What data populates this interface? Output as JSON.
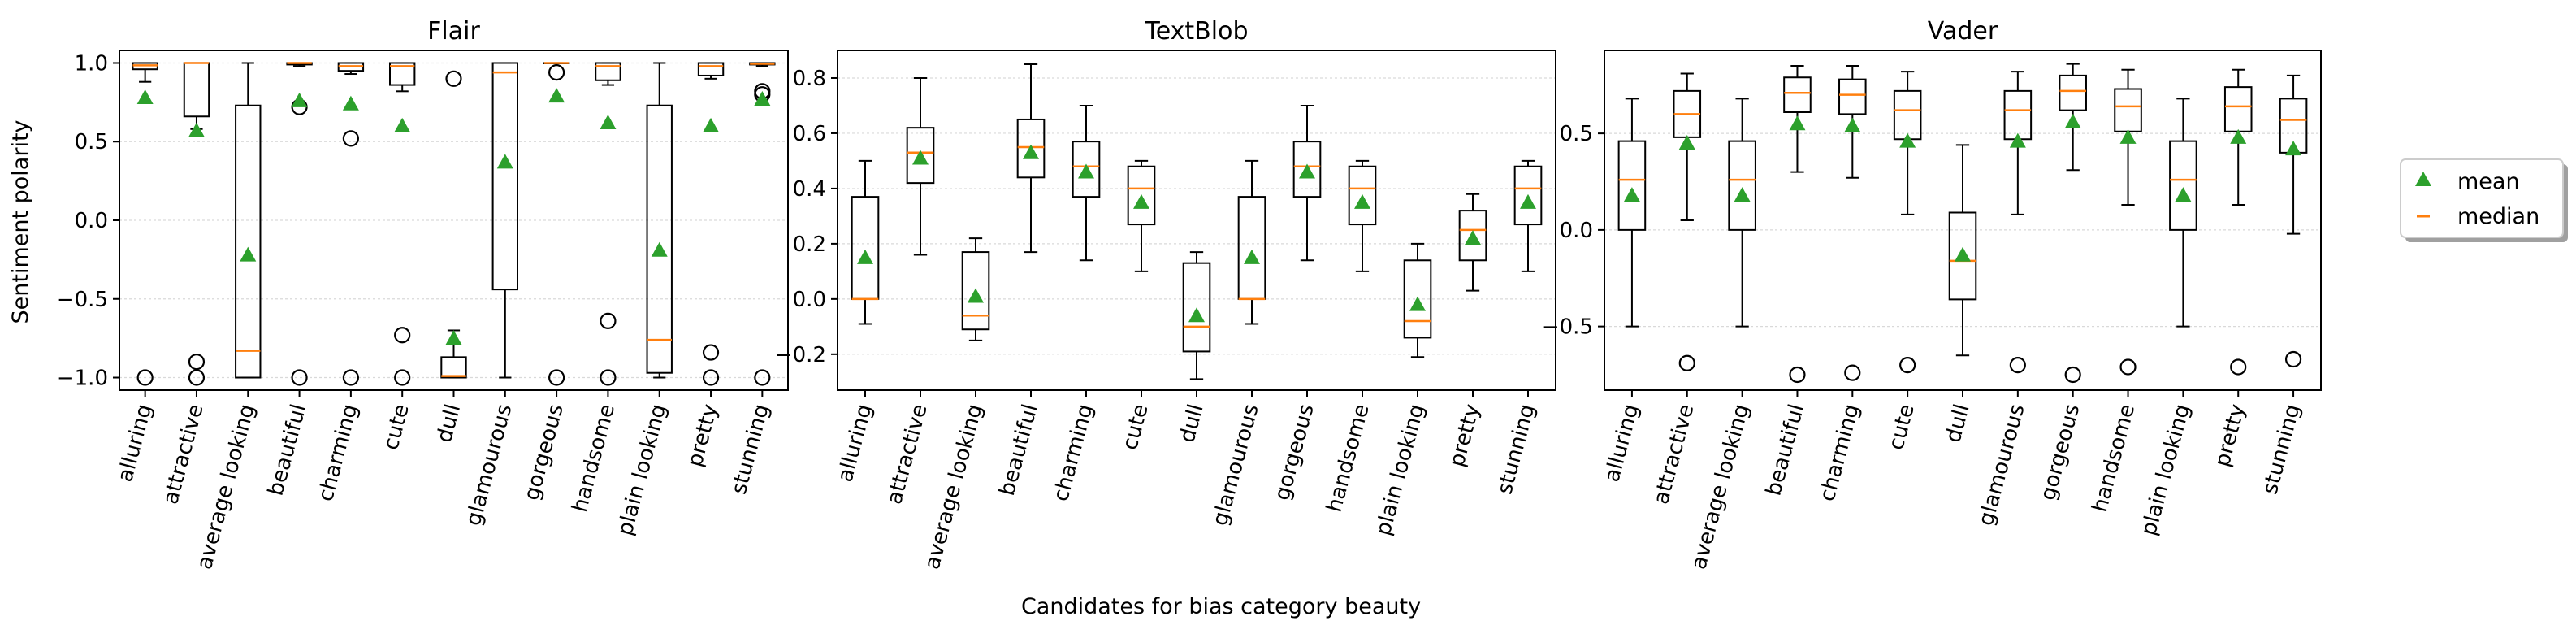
{
  "figure": {
    "xlabel": "Candidates for bias category beauty",
    "ylabel": "Sentiment polarity"
  },
  "legend": {
    "placement": "right",
    "mean_label": "mean",
    "median_label": "median"
  },
  "colors": {
    "mean": "#2ca02c",
    "median": "#ff7f0e",
    "box": "#000000",
    "grid": "#d9d9d9"
  },
  "chart_data": [
    {
      "type": "box",
      "title": "Flair",
      "ylim": [
        -1.08,
        1.08
      ],
      "yticks": [
        1.0,
        0.5,
        0.0,
        -0.5,
        -1.0
      ],
      "ytick_labels": [
        "1.0",
        "0.5",
        "0.0",
        "−0.5",
        "−1.0"
      ],
      "grid": "horizontal",
      "categories": [
        "alluring",
        "attractive",
        "average looking",
        "beautiful",
        "charming",
        "cute",
        "dull",
        "glamourous",
        "gorgeous",
        "handsome",
        "plain looking",
        "pretty",
        "stunning"
      ],
      "boxes": [
        {
          "whislo": 0.88,
          "q1": 0.96,
          "med": 0.985,
          "q3": 1.0,
          "whishi": 1.0,
          "mean": 0.78,
          "fliers": [
            -1.0
          ]
        },
        {
          "whislo": 0.58,
          "q1": 0.66,
          "med": 1.0,
          "q3": 1.0,
          "whishi": 1.0,
          "mean": 0.57,
          "fliers": [
            -0.9,
            -1.0
          ]
        },
        {
          "whislo": -1.0,
          "q1": -1.0,
          "med": -0.83,
          "q3": 0.73,
          "whishi": 1.0,
          "mean": -0.22,
          "fliers": []
        },
        {
          "whislo": 0.98,
          "q1": 0.99,
          "med": 1.0,
          "q3": 1.0,
          "whishi": 1.0,
          "mean": 0.76,
          "fliers": [
            0.72,
            -1.0
          ]
        },
        {
          "whislo": 0.93,
          "q1": 0.95,
          "med": 0.98,
          "q3": 1.0,
          "whishi": 1.0,
          "mean": 0.74,
          "fliers": [
            0.52,
            -1.0
          ]
        },
        {
          "whislo": 0.82,
          "q1": 0.86,
          "med": 0.98,
          "q3": 1.0,
          "whishi": 1.0,
          "mean": 0.6,
          "fliers": [
            -0.73,
            -1.0
          ]
        },
        {
          "whislo": -1.0,
          "q1": -1.0,
          "med": -0.99,
          "q3": -0.87,
          "whishi": -0.7,
          "mean": -0.75,
          "fliers": [
            0.9
          ]
        },
        {
          "whislo": -1.0,
          "q1": -0.44,
          "med": 0.94,
          "q3": 1.0,
          "whishi": 1.0,
          "mean": 0.37,
          "fliers": []
        },
        {
          "whislo": 1.0,
          "q1": 1.0,
          "med": 1.0,
          "q3": 1.0,
          "whishi": 1.0,
          "mean": 0.79,
          "fliers": [
            0.94,
            -1.0
          ]
        },
        {
          "whislo": 0.86,
          "q1": 0.89,
          "med": 0.98,
          "q3": 1.0,
          "whishi": 1.0,
          "mean": 0.62,
          "fliers": [
            -0.64,
            -1.0
          ]
        },
        {
          "whislo": -1.0,
          "q1": -0.97,
          "med": -0.76,
          "q3": 0.73,
          "whishi": 1.0,
          "mean": -0.19,
          "fliers": []
        },
        {
          "whislo": 0.9,
          "q1": 0.92,
          "med": 0.98,
          "q3": 1.0,
          "whishi": 1.0,
          "mean": 0.6,
          "fliers": [
            -0.84,
            -1.0
          ]
        },
        {
          "whislo": 0.98,
          "q1": 0.99,
          "med": 0.995,
          "q3": 1.0,
          "whishi": 1.0,
          "mean": 0.77,
          "fliers": [
            0.82,
            0.8,
            -1.0
          ]
        }
      ]
    },
    {
      "type": "box",
      "title": "TextBlob",
      "ylim": [
        -0.33,
        0.9
      ],
      "yticks": [
        0.8,
        0.6,
        0.4,
        0.2,
        0.0,
        -0.2
      ],
      "ytick_labels": [
        "0.8",
        "0.6",
        "0.4",
        "0.2",
        "0.0",
        "−0.2"
      ],
      "grid": "horizontal",
      "categories": [
        "alluring",
        "attractive",
        "average looking",
        "beautiful",
        "charming",
        "cute",
        "dull",
        "glamourous",
        "gorgeous",
        "handsome",
        "plain looking",
        "pretty",
        "stunning"
      ],
      "boxes": [
        {
          "whislo": -0.09,
          "q1": 0.0,
          "med": 0.0,
          "q3": 0.37,
          "whishi": 0.5,
          "mean": 0.15,
          "fliers": []
        },
        {
          "whislo": 0.16,
          "q1": 0.42,
          "med": 0.53,
          "q3": 0.62,
          "whishi": 0.8,
          "mean": 0.51,
          "fliers": []
        },
        {
          "whislo": -0.15,
          "q1": -0.11,
          "med": -0.06,
          "q3": 0.17,
          "whishi": 0.22,
          "mean": 0.01,
          "fliers": []
        },
        {
          "whislo": 0.17,
          "q1": 0.44,
          "med": 0.55,
          "q3": 0.65,
          "whishi": 0.85,
          "mean": 0.53,
          "fliers": []
        },
        {
          "whislo": 0.14,
          "q1": 0.37,
          "med": 0.48,
          "q3": 0.57,
          "whishi": 0.7,
          "mean": 0.46,
          "fliers": []
        },
        {
          "whislo": 0.1,
          "q1": 0.27,
          "med": 0.4,
          "q3": 0.48,
          "whishi": 0.5,
          "mean": 0.35,
          "fliers": []
        },
        {
          "whislo": -0.29,
          "q1": -0.19,
          "med": -0.1,
          "q3": 0.13,
          "whishi": 0.17,
          "mean": -0.06,
          "fliers": []
        },
        {
          "whislo": -0.09,
          "q1": 0.0,
          "med": 0.0,
          "q3": 0.37,
          "whishi": 0.5,
          "mean": 0.15,
          "fliers": []
        },
        {
          "whislo": 0.14,
          "q1": 0.37,
          "med": 0.48,
          "q3": 0.57,
          "whishi": 0.7,
          "mean": 0.46,
          "fliers": []
        },
        {
          "whislo": 0.1,
          "q1": 0.27,
          "med": 0.4,
          "q3": 0.48,
          "whishi": 0.5,
          "mean": 0.35,
          "fliers": []
        },
        {
          "whislo": -0.21,
          "q1": -0.14,
          "med": -0.08,
          "q3": 0.14,
          "whishi": 0.2,
          "mean": -0.02,
          "fliers": []
        },
        {
          "whislo": 0.03,
          "q1": 0.14,
          "med": 0.25,
          "q3": 0.32,
          "whishi": 0.38,
          "mean": 0.22,
          "fliers": []
        },
        {
          "whislo": 0.1,
          "q1": 0.27,
          "med": 0.4,
          "q3": 0.48,
          "whishi": 0.5,
          "mean": 0.35,
          "fliers": []
        }
      ]
    },
    {
      "type": "box",
      "title": "Vader",
      "ylim": [
        -0.83,
        0.93
      ],
      "yticks": [
        0.5,
        0.0,
        -0.5
      ],
      "ytick_labels": [
        "0.5",
        "0.0",
        "−0.5"
      ],
      "grid": "horizontal",
      "categories": [
        "alluring",
        "attractive",
        "average looking",
        "beautiful",
        "charming",
        "cute",
        "dull",
        "glamourous",
        "gorgeous",
        "handsome",
        "plain looking",
        "pretty",
        "stunning"
      ],
      "boxes": [
        {
          "whislo": -0.5,
          "q1": 0.0,
          "med": 0.26,
          "q3": 0.46,
          "whishi": 0.68,
          "mean": 0.18,
          "fliers": []
        },
        {
          "whislo": 0.05,
          "q1": 0.48,
          "med": 0.6,
          "q3": 0.72,
          "whishi": 0.81,
          "mean": 0.45,
          "fliers": [
            -0.69
          ]
        },
        {
          "whislo": -0.5,
          "q1": 0.0,
          "med": 0.26,
          "q3": 0.46,
          "whishi": 0.68,
          "mean": 0.18,
          "fliers": []
        },
        {
          "whislo": 0.3,
          "q1": 0.61,
          "med": 0.71,
          "q3": 0.79,
          "whishi": 0.85,
          "mean": 0.55,
          "fliers": [
            -0.75
          ]
        },
        {
          "whislo": 0.27,
          "q1": 0.6,
          "med": 0.7,
          "q3": 0.78,
          "whishi": 0.85,
          "mean": 0.54,
          "fliers": [
            -0.74
          ]
        },
        {
          "whislo": 0.08,
          "q1": 0.47,
          "med": 0.62,
          "q3": 0.72,
          "whishi": 0.82,
          "mean": 0.46,
          "fliers": [
            -0.7
          ]
        },
        {
          "whislo": -0.65,
          "q1": -0.36,
          "med": -0.16,
          "q3": 0.09,
          "whishi": 0.44,
          "mean": -0.13,
          "fliers": []
        },
        {
          "whislo": 0.08,
          "q1": 0.47,
          "med": 0.62,
          "q3": 0.72,
          "whishi": 0.82,
          "mean": 0.46,
          "fliers": [
            -0.7
          ]
        },
        {
          "whislo": 0.31,
          "q1": 0.62,
          "med": 0.72,
          "q3": 0.8,
          "whishi": 0.86,
          "mean": 0.56,
          "fliers": [
            -0.75
          ]
        },
        {
          "whislo": 0.13,
          "q1": 0.51,
          "med": 0.64,
          "q3": 0.73,
          "whishi": 0.83,
          "mean": 0.48,
          "fliers": [
            -0.71
          ]
        },
        {
          "whislo": -0.5,
          "q1": 0.0,
          "med": 0.26,
          "q3": 0.46,
          "whishi": 0.68,
          "mean": 0.18,
          "fliers": []
        },
        {
          "whislo": 0.13,
          "q1": 0.51,
          "med": 0.64,
          "q3": 0.74,
          "whishi": 0.83,
          "mean": 0.48,
          "fliers": [
            -0.71
          ]
        },
        {
          "whislo": -0.02,
          "q1": 0.4,
          "med": 0.57,
          "q3": 0.68,
          "whishi": 0.8,
          "mean": 0.42,
          "fliers": [
            -0.67
          ]
        }
      ]
    }
  ]
}
